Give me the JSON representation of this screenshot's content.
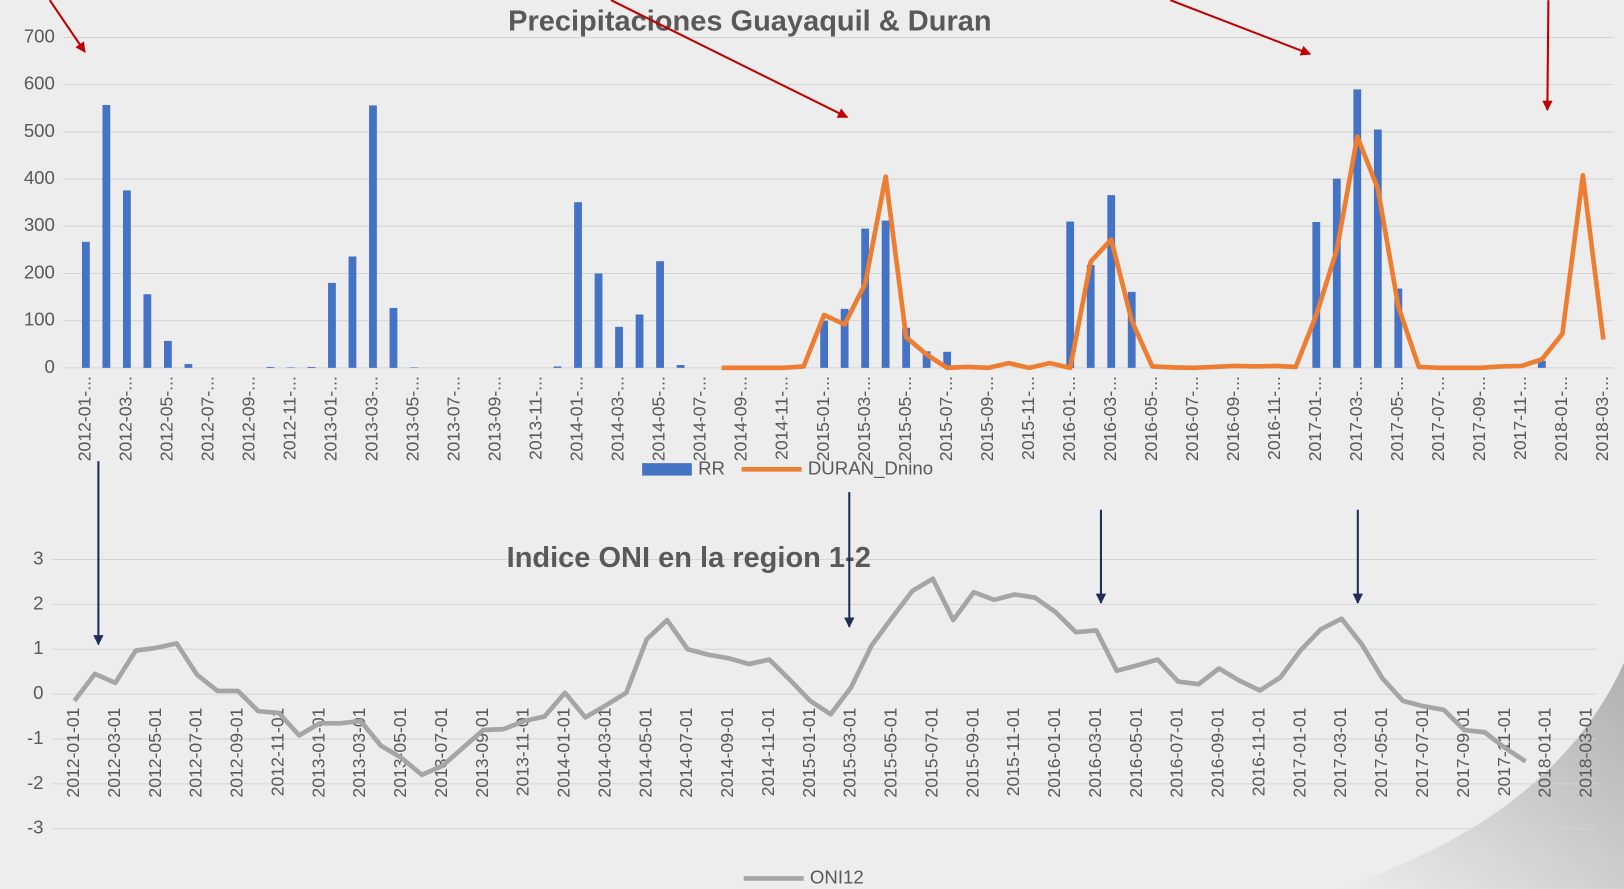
{
  "chart_data": [
    {
      "type": "bar",
      "title": "Precipitaciones Guayaquil & Duran",
      "categories": [
        "2012-01-...",
        null,
        "2012-03-...",
        null,
        "2012-05-...",
        null,
        "2012-07-...",
        null,
        "2012-09-...",
        null,
        "2012-11-...",
        null,
        "2013-01-...",
        null,
        "2013-03-...",
        null,
        "2013-05-...",
        null,
        "2013-07-...",
        null,
        "2013-09-...",
        null,
        "2013-11-...",
        null,
        "2014-01-...",
        null,
        "2014-03-...",
        null,
        "2014-05-...",
        null,
        "2014-07-...",
        null,
        "2014-09-...",
        null,
        "2014-11-...",
        null,
        "2015-01-...",
        null,
        "2015-03-...",
        null,
        "2015-05-...",
        null,
        "2015-07-...",
        null,
        "2015-09-...",
        null,
        "2015-11-...",
        null,
        "2016-01-...",
        null,
        "2016-03-...",
        null,
        "2016-05-...",
        null,
        "2016-07-...",
        null,
        "2016-09-...",
        null,
        "2016-11-...",
        null,
        "2017-01-...",
        null,
        "2017-03-...",
        null,
        "2017-05-...",
        null,
        "2017-07-...",
        null,
        "2017-09-...",
        null,
        "2017-11-...",
        null,
        "2018-01-...",
        null,
        "2018-03-..."
      ],
      "series": [
        {
          "name": "RR",
          "type": "bar",
          "color": "#4472c4",
          "values": [
            267,
            557,
            376,
            156,
            57,
            8,
            0,
            0,
            0,
            2,
            1,
            2,
            180,
            236,
            556,
            127,
            1,
            0,
            0,
            0,
            0,
            0,
            0,
            3,
            351,
            200,
            87,
            113,
            226,
            6,
            0,
            0,
            0,
            0,
            0,
            0,
            100,
            125,
            295,
            312,
            85,
            35,
            34,
            0,
            0,
            0,
            0,
            0,
            310,
            218,
            366,
            161,
            0,
            0,
            0,
            0,
            0,
            0,
            0,
            0,
            309,
            401,
            590,
            505,
            168,
            0,
            0,
            0,
            0,
            0,
            0,
            15,
            0,
            0,
            0
          ]
        },
        {
          "name": "DURAN_Dnino",
          "type": "line",
          "color": "#ed7d31",
          "values": [
            null,
            null,
            null,
            null,
            null,
            null,
            null,
            null,
            null,
            null,
            null,
            null,
            null,
            null,
            null,
            null,
            null,
            null,
            null,
            null,
            null,
            null,
            null,
            null,
            null,
            null,
            null,
            null,
            null,
            null,
            null,
            0,
            0,
            0,
            0,
            3,
            112,
            92,
            178,
            405,
            65,
            28,
            0,
            2,
            0,
            10,
            0,
            10,
            0,
            225,
            272,
            100,
            3,
            1,
            0,
            2,
            4,
            3,
            4,
            2,
            112,
            250,
            490,
            380,
            130,
            2,
            0,
            0,
            0,
            3,
            4,
            18,
            72,
            408,
            60
          ]
        }
      ],
      "ylim": [
        0,
        700
      ],
      "yticks": [
        0,
        100,
        200,
        300,
        400,
        500,
        600,
        700
      ],
      "grid": true,
      "legend": "bottom"
    },
    {
      "type": "line",
      "title": "Indice ONI en la region 1-2",
      "categories": [
        "2012-01-01",
        null,
        "2012-03-01",
        null,
        "2012-05-01",
        null,
        "2012-07-01",
        null,
        "2012-09-01",
        null,
        "2012-11-01",
        null,
        "2013-01-01",
        null,
        "2013-03-01",
        null,
        "2013-05-01",
        null,
        "2013-07-01",
        null,
        "2013-09-01",
        null,
        "2013-11-01",
        null,
        "2014-01-01",
        null,
        "2014-03-01",
        null,
        "2014-05-01",
        null,
        "2014-07-01",
        null,
        "2014-09-01",
        null,
        "2014-11-01",
        null,
        "2015-01-01",
        null,
        "2015-03-01",
        null,
        "2015-05-01",
        null,
        "2015-07-01",
        null,
        "2015-09-01",
        null,
        "2015-11-01",
        null,
        "2016-01-01",
        null,
        "2016-03-01",
        null,
        "2016-05-01",
        null,
        "2016-07-01",
        null,
        "2016-09-01",
        null,
        "2016-11-01",
        null,
        "2017-01-01",
        null,
        "2017-03-01",
        null,
        "2017-05-01",
        null,
        "2017-07-01",
        null,
        "2017-09-01",
        null,
        "2017-11-01",
        null,
        "2018-01-01",
        null,
        "2018-03-01"
      ],
      "series": [
        {
          "name": "ONI12",
          "type": "line",
          "color": "#a5a5a5",
          "values": [
            -0.15,
            0.45,
            0.25,
            0.97,
            1.03,
            1.13,
            0.43,
            0.07,
            0.07,
            -0.38,
            -0.42,
            -0.92,
            -0.65,
            -0.65,
            -0.6,
            -1.15,
            -1.42,
            -1.8,
            -1.6,
            -1.2,
            -0.8,
            -0.78,
            -0.6,
            -0.5,
            0.03,
            -0.52,
            -0.25,
            0.03,
            1.22,
            1.65,
            1.0,
            0.88,
            0.8,
            0.67,
            0.77,
            0.32,
            -0.15,
            -0.45,
            0.15,
            1.08,
            1.7,
            2.3,
            2.57,
            1.65,
            2.27,
            2.1,
            2.22,
            2.15,
            1.83,
            1.38,
            1.42,
            0.52,
            0.64,
            0.77,
            0.28,
            0.22,
            0.57,
            0.3,
            0.08,
            0.37,
            0.98,
            1.45,
            1.68,
            1.1,
            0.35,
            -0.15,
            -0.27,
            -0.35,
            -0.8,
            -0.85,
            -1.2,
            -1.5,
            null,
            null,
            null
          ]
        }
      ],
      "ylim": [
        -3,
        3
      ],
      "yticks": [
        -3,
        -2,
        -1,
        0,
        1,
        2,
        3
      ],
      "grid": true,
      "legend": "bottom"
    }
  ]
}
